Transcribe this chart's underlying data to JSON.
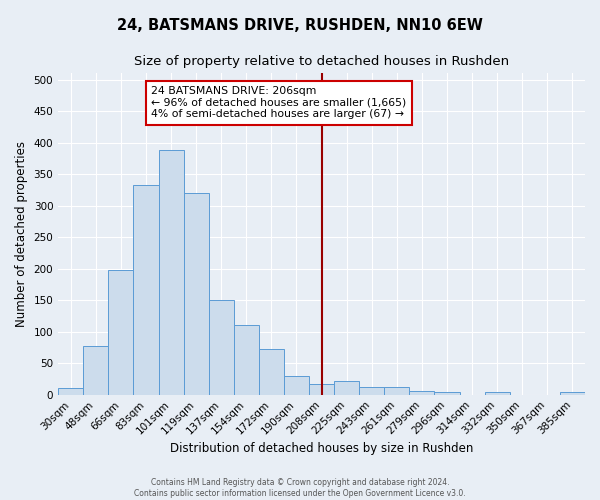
{
  "title_line1": "24, BATSMANS DRIVE, RUSHDEN, NN10 6EW",
  "title_line2": "Size of property relative to detached houses in Rushden",
  "xlabel": "Distribution of detached houses by size in Rushden",
  "ylabel": "Number of detached properties",
  "categories": [
    "30sqm",
    "48sqm",
    "66sqm",
    "83sqm",
    "101sqm",
    "119sqm",
    "137sqm",
    "154sqm",
    "172sqm",
    "190sqm",
    "208sqm",
    "225sqm",
    "243sqm",
    "261sqm",
    "279sqm",
    "296sqm",
    "314sqm",
    "332sqm",
    "350sqm",
    "367sqm",
    "385sqm"
  ],
  "values": [
    10,
    78,
    198,
    333,
    388,
    320,
    151,
    110,
    73,
    30,
    17,
    21,
    13,
    13,
    6,
    5,
    0,
    5,
    0,
    0,
    5
  ],
  "bar_color": "#ccdcec",
  "bar_edge_color": "#5b9bd5",
  "vline_color": "#990000",
  "annotation_text_line1": "24 BATSMANS DRIVE: 206sqm",
  "annotation_text_line2": "← 96% of detached houses are smaller (1,665)",
  "annotation_text_line3": "4% of semi-detached houses are larger (67) →",
  "annotation_box_color": "#ffffff",
  "annotation_box_edge_color": "#cc0000",
  "footnote1": "Contains HM Land Registry data © Crown copyright and database right 2024.",
  "footnote2": "Contains public sector information licensed under the Open Government Licence v3.0.",
  "bg_color": "#e8eef5",
  "grid_color": "#ffffff",
  "ylim": [
    0,
    510
  ],
  "yticks": [
    0,
    50,
    100,
    150,
    200,
    250,
    300,
    350,
    400,
    450,
    500
  ],
  "title_fontsize": 10.5,
  "subtitle_fontsize": 9.5,
  "xlabel_fontsize": 8.5,
  "ylabel_fontsize": 8.5,
  "tick_fontsize": 7.5,
  "annotation_fontsize": 7.8,
  "footnote_fontsize": 5.5,
  "vline_x_index": 10
}
